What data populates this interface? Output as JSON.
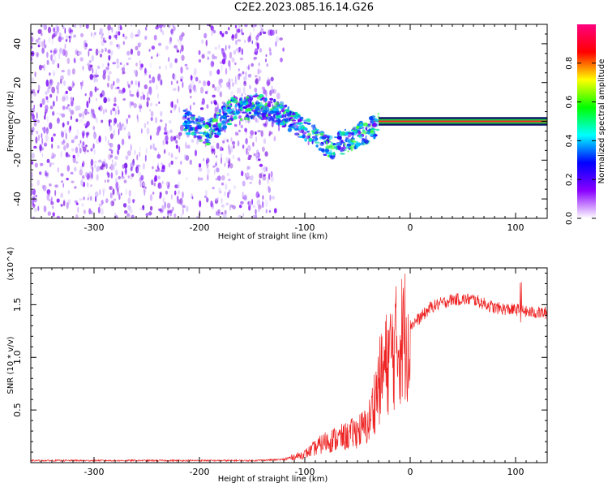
{
  "title": "C2E2.2023.085.16.14.G26",
  "chart_data": [
    {
      "type": "heatmap",
      "title": "C2E2.2023.085.16.14.G26",
      "xlabel": "Height of straight line (km)",
      "ylabel": "Frequency (Hz)",
      "xlim": [
        -360,
        130
      ],
      "ylim": [
        -50,
        50
      ],
      "x_ticks": [
        -300,
        -200,
        -100,
        0,
        100
      ],
      "y_ticks": [
        -40,
        -20,
        0,
        20,
        40
      ],
      "colorbar": {
        "label": "Normalized spectral amplitude",
        "range": [
          0,
          1
        ],
        "ticks": [
          0.0,
          0.2,
          0.4,
          0.6,
          0.8
        ],
        "colormap": [
          "#ffffff",
          "#8a00ff",
          "#0000ff",
          "#00ffff",
          "#00ff00",
          "#ffff00",
          "#ff0000",
          "#ff0080"
        ]
      },
      "regions": [
        {
          "name": "scattered noise",
          "x": [
            -360,
            -120
          ],
          "freq": [
            -50,
            50
          ],
          "amplitude": 0.25
        },
        {
          "name": "wavy signal",
          "x": [
            -215,
            -30
          ],
          "freq_center": [
            0,
            -6,
            6,
            8,
            4,
            -4,
            -14,
            -8,
            -2
          ],
          "amplitude": 0.5
        },
        {
          "name": "stable carrier",
          "x": [
            -30,
            130
          ],
          "freq_center": 0,
          "amplitude": 0.95
        }
      ]
    },
    {
      "type": "line",
      "xlabel": "Height of straight line (km)",
      "ylabel": "SNR (10 * v/v)",
      "y_multiplier": "(x10^4)",
      "xlim": [
        -360,
        130
      ],
      "ylim": [
        0,
        1.85
      ],
      "x_ticks": [
        -300,
        -200,
        -100,
        0,
        100
      ],
      "y_ticks": [
        0.5,
        1.0,
        1.5
      ],
      "series": [
        {
          "name": "SNR",
          "color": "#ee2222",
          "x": [
            -360,
            -300,
            -250,
            -200,
            -150,
            -120,
            -100,
            -80,
            -60,
            -40,
            -30,
            -20,
            -10,
            0,
            10,
            20,
            40,
            60,
            80,
            100,
            105,
            110,
            130
          ],
          "y": [
            0.02,
            0.02,
            0.02,
            0.02,
            0.02,
            0.03,
            0.08,
            0.2,
            0.25,
            0.35,
            0.75,
            1.0,
            1.15,
            1.3,
            1.38,
            1.48,
            1.55,
            1.55,
            1.47,
            1.45,
            1.45,
            1.43,
            1.42
          ]
        }
      ]
    }
  ]
}
